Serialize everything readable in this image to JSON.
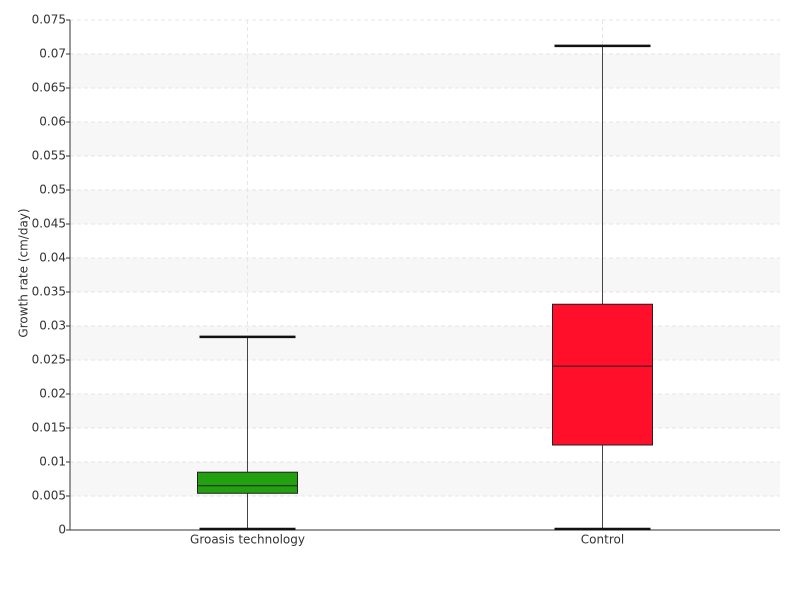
{
  "chart_data": {
    "type": "box",
    "ylabel": "Growth rate (cm/day)",
    "categories": [
      "Groasis technology",
      "Control"
    ],
    "boxes": [
      {
        "min": 0,
        "q1": 0.0054,
        "median": 0.0065,
        "q3": 0.0085,
        "max": 0.0284,
        "color": "#22a00f"
      },
      {
        "min": 0,
        "q1": 0.0125,
        "median": 0.0241,
        "q3": 0.0332,
        "max": 0.0712,
        "color": "#ff0f2a"
      }
    ],
    "ylim": [
      0,
      0.075
    ],
    "yticks": [
      0,
      0.005,
      0.01,
      0.015,
      0.02,
      0.025,
      0.03,
      0.035,
      0.04,
      0.045,
      0.05,
      0.055,
      0.06,
      0.065,
      0.07,
      0.075
    ],
    "grid": true
  }
}
